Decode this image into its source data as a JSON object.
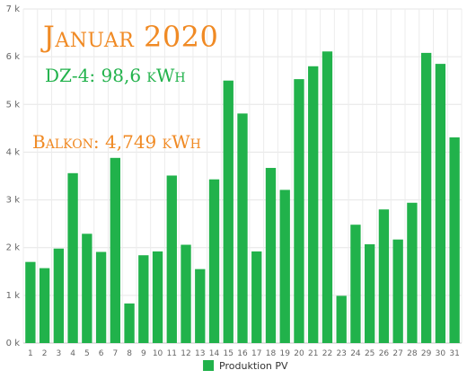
{
  "chart_data": {
    "type": "bar",
    "title": "",
    "xlabel": "",
    "ylabel": "",
    "ylim": [
      0,
      7000
    ],
    "yticks": [
      0,
      1000,
      2000,
      3000,
      4000,
      5000,
      6000,
      7000
    ],
    "ytick_labels": [
      "0 k",
      "1 k",
      "2 k",
      "3 k",
      "4 k",
      "5 k",
      "6 k",
      "7 k"
    ],
    "grid": true,
    "legend_placement": "bottom-center",
    "categories": [
      "1",
      "2",
      "3",
      "4",
      "5",
      "6",
      "7",
      "8",
      "9",
      "10",
      "11",
      "12",
      "13",
      "14",
      "15",
      "16",
      "17",
      "18",
      "19",
      "20",
      "21",
      "22",
      "23",
      "24",
      "25",
      "26",
      "27",
      "28",
      "29",
      "30",
      "31"
    ],
    "series": [
      {
        "name": "Produktion PV",
        "color": "#21b24b",
        "values": [
          1700,
          1570,
          1980,
          3560,
          2290,
          1910,
          3880,
          830,
          1840,
          1920,
          3510,
          2060,
          1550,
          3430,
          5500,
          4810,
          1920,
          3670,
          3210,
          5530,
          5800,
          6110,
          990,
          2480,
          2070,
          2800,
          2170,
          2940,
          6080,
          5850,
          4310
        ]
      }
    ]
  },
  "overlay": {
    "title": "Januar 2020",
    "title_color": "#f08a24",
    "dz_text": "DZ-4: 98,6 kWh",
    "dz_color": "#21b24b",
    "balkon_text": "Balkon: 4,749 kWh",
    "balkon_color": "#f08a24"
  }
}
